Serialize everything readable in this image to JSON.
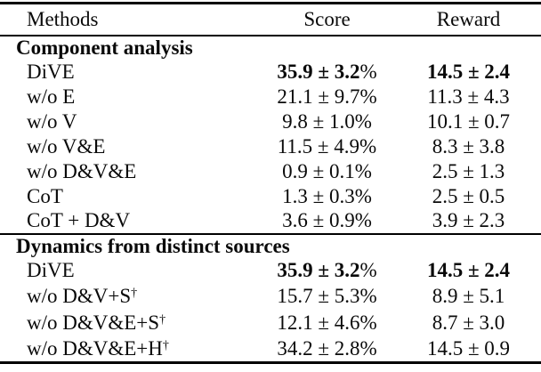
{
  "header": {
    "methods": "Methods",
    "score": "Score",
    "reward": "Reward"
  },
  "sections": [
    {
      "title": "Component analysis",
      "rows": [
        {
          "method": "DiVE",
          "score": "35.9 ± 3.2",
          "unit": "%",
          "reward": "14.5 ± 2.4",
          "bold": true
        },
        {
          "method": "w/o E",
          "score": "21.1 ± 9.7",
          "unit": "%",
          "reward": "11.3 ± 4.3",
          "bold": false
        },
        {
          "method": "w/o V",
          "score": "9.8 ± 1.0",
          "unit": "%",
          "reward": "10.1 ± 0.7",
          "bold": false
        },
        {
          "method": "w/o V&E",
          "score": "11.5 ± 4.9",
          "unit": "%",
          "reward": "8.3 ± 3.8",
          "bold": false
        },
        {
          "method": "w/o D&V&E",
          "score": "0.9 ± 0.1",
          "unit": "%",
          "reward": "2.5 ± 1.3",
          "bold": false
        },
        {
          "method": "CoT",
          "score": "1.3 ± 0.3",
          "unit": "%",
          "reward": "2.5 ± 0.5",
          "bold": false
        },
        {
          "method": "CoT + D&V",
          "score": "3.6 ± 0.9",
          "unit": "%",
          "reward": "3.9 ± 2.3",
          "bold": false
        }
      ]
    },
    {
      "title": "Dynamics from distinct sources",
      "rows": [
        {
          "method": "DiVE",
          "sup": "",
          "score": "35.9 ± 3.2",
          "unit": "%",
          "reward": "14.5 ± 2.4",
          "bold": true
        },
        {
          "method": "w/o D&V+S",
          "sup": "†",
          "score": "15.7 ± 5.3",
          "unit": "%",
          "reward": "8.9 ± 5.1",
          "bold": false
        },
        {
          "method": "w/o D&V&E+S",
          "sup": "†",
          "score": "12.1 ± 4.6",
          "unit": "%",
          "reward": "8.7 ± 3.0",
          "bold": false
        },
        {
          "method": "w/o D&V&E+H",
          "sup": "†",
          "score": "34.2 ± 2.8",
          "unit": "%",
          "reward": "14.5 ± 0.9",
          "bold": false
        }
      ]
    }
  ]
}
